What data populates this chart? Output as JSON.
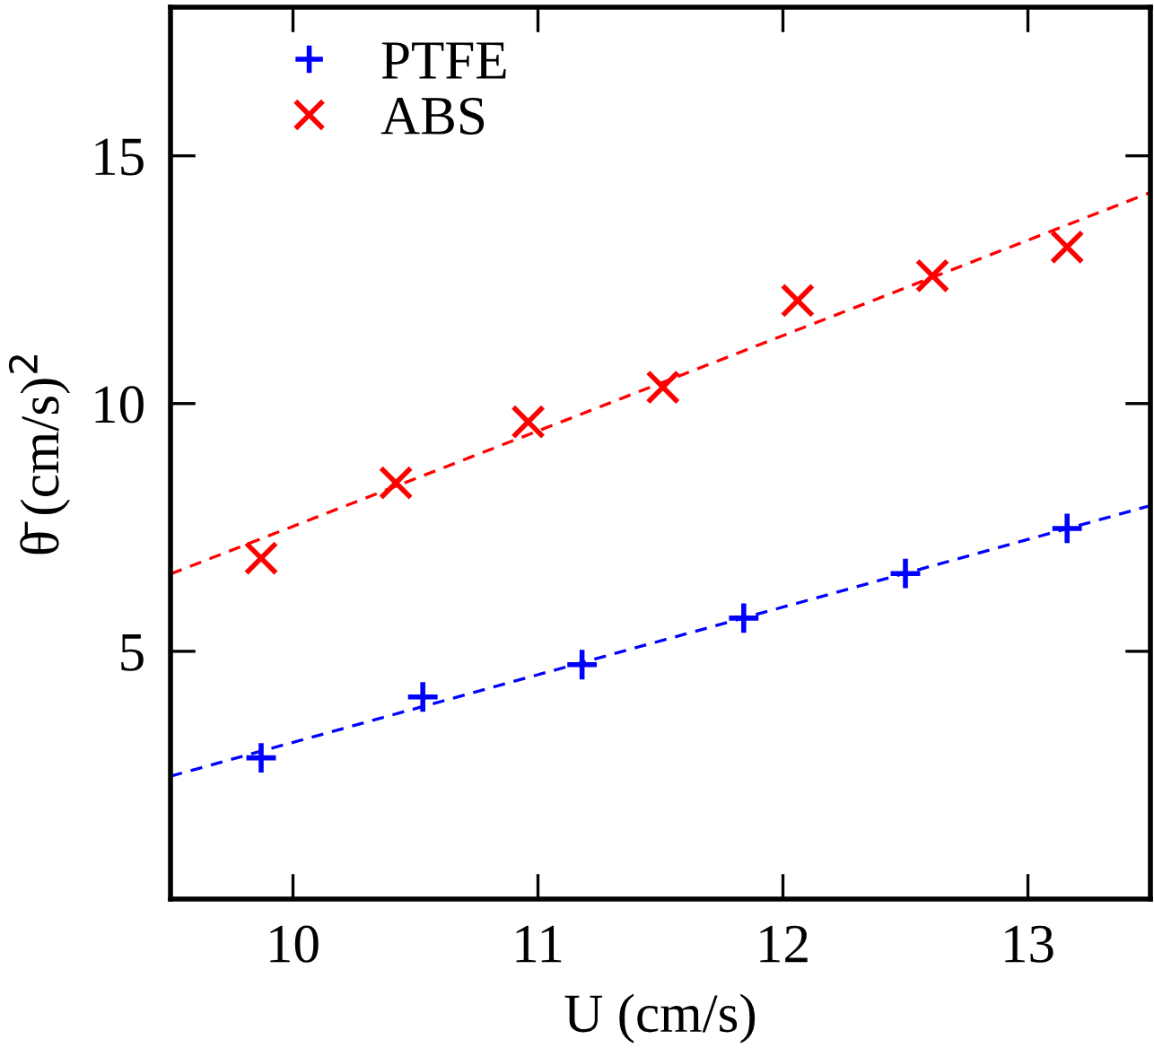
{
  "chart_data": {
    "type": "scatter",
    "xlabel": "U (cm/s)",
    "ylabel": "θ̄ (cm/s)$^{2}$",
    "xlim": [
      9.5,
      13.5
    ],
    "xticks": [
      10,
      11,
      12,
      13
    ],
    "ylim": [
      0,
      18
    ],
    "yticks": [
      5,
      10,
      15
    ],
    "grid": false,
    "legend": "top left",
    "series": [
      {
        "name": "PTFE",
        "color": "#0000ff",
        "marker": "plus",
        "x": [
          9.87,
          10.53,
          11.18,
          11.84,
          12.5,
          13.16
        ],
        "values": [
          2.85,
          4.08,
          4.73,
          5.67,
          6.57,
          7.48
        ]
      },
      {
        "name": "ABS",
        "color": "#ff0000",
        "marker": "cross",
        "x": [
          9.87,
          10.42,
          10.96,
          11.51,
          12.06,
          12.61,
          13.16
        ],
        "values": [
          6.88,
          8.4,
          9.63,
          10.33,
          12.08,
          12.58,
          13.16
        ]
      },
      {
        "type": "line",
        "color": "#0000ff",
        "line_style": "dashed",
        "marker": "none",
        "x": [
          9.5,
          13.5
        ],
        "values": [
          2.48,
          7.94
        ]
      },
      {
        "type": "line",
        "color": "#ff0000",
        "line_style": "dashed",
        "marker": "none",
        "x": [
          9.5,
          13.5
        ],
        "values": [
          6.56,
          14.26
        ]
      }
    ]
  }
}
